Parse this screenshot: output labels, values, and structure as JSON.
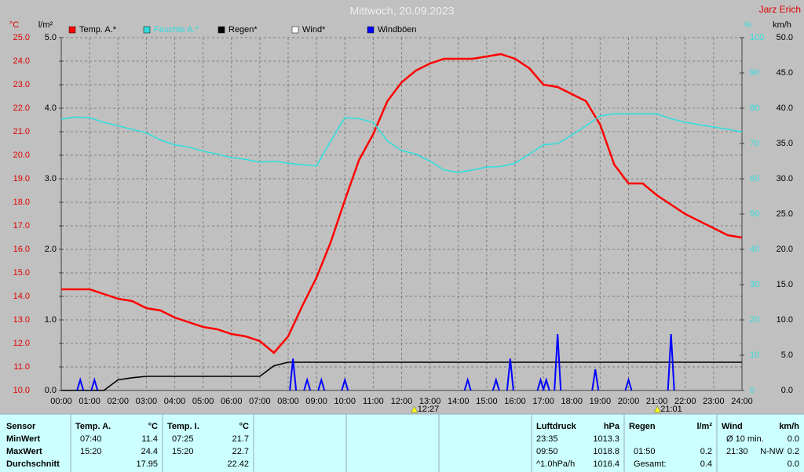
{
  "chart_data": {
    "type": "line",
    "title": "Mittwoch, 20.09.2023",
    "author": "Jarz Erich",
    "units": {
      "y": "°C",
      "y2": "l/m²",
      "y3": "%",
      "y4": "km/h"
    },
    "legend": "top",
    "grid": true,
    "xlim": [
      0,
      24
    ],
    "x": [
      "00:00",
      null,
      "01:00",
      null,
      "02:00",
      null,
      "03:00",
      null,
      "04:00",
      null,
      "05:00",
      null,
      "06:00",
      null,
      "07:00",
      null,
      "08:00",
      null,
      "09:00",
      null,
      "10:00",
      null,
      "11:00",
      null,
      "12:00",
      null,
      "13:00",
      null,
      "14:00",
      null,
      "15:00",
      null,
      "16:00",
      null,
      "17:00",
      null,
      "18:00",
      null,
      "19:00",
      null,
      "20:00",
      null,
      "21:00",
      null,
      "22:00",
      null,
      "23:00",
      null,
      "24:00"
    ],
    "ylim": [
      10,
      25
    ],
    "yticks": [
      {
        "value": 10,
        "label": "10.0"
      },
      {
        "value": 11,
        "label": "11.0"
      },
      {
        "value": 12,
        "label": "12.0"
      },
      {
        "value": 13,
        "label": "13.0"
      },
      {
        "value": 14,
        "label": "14.0"
      },
      {
        "value": 15,
        "label": "15.0"
      },
      {
        "value": 16,
        "label": "16.0"
      },
      {
        "value": 17,
        "label": "17.0"
      },
      {
        "value": 18,
        "label": "18.0"
      },
      {
        "value": 19,
        "label": "19.0"
      },
      {
        "value": 20,
        "label": "20.0"
      },
      {
        "value": 21,
        "label": "21.0"
      },
      {
        "value": 22,
        "label": "22.0"
      },
      {
        "value": 23,
        "label": "23.0"
      },
      {
        "value": 24,
        "label": "24.0"
      },
      {
        "value": 25,
        "label": "25.0"
      }
    ],
    "y2lim": [
      0,
      5
    ],
    "y2ticks": [
      {
        "value": 0,
        "label": "0.0"
      },
      {
        "value": 1,
        "label": "1.0"
      },
      {
        "value": 2,
        "label": "2.0"
      },
      {
        "value": 3,
        "label": "3.0"
      },
      {
        "value": 4,
        "label": "4.0"
      },
      {
        "value": 5,
        "label": "5.0"
      }
    ],
    "y3lim": [
      0,
      100
    ],
    "y3ticks": [
      0,
      10,
      20,
      30,
      40,
      50,
      60,
      70,
      80,
      90,
      100
    ],
    "y4lim": [
      0,
      50
    ],
    "y4ticks": [
      {
        "value": 0,
        "label": "0.0"
      },
      {
        "value": 5,
        "label": "5.0"
      },
      {
        "value": 10,
        "label": "10.0"
      },
      {
        "value": 15,
        "label": "15.0"
      },
      {
        "value": 20,
        "label": "20.0"
      },
      {
        "value": 25,
        "label": "25.0"
      },
      {
        "value": 30,
        "label": "30.0"
      },
      {
        "value": 35,
        "label": "35.0"
      },
      {
        "value": 40,
        "label": "40.0"
      },
      {
        "value": 45,
        "label": "45.0"
      },
      {
        "value": 50,
        "label": "50.0"
      }
    ],
    "series": [
      {
        "name": "Temp. A.*",
        "color": "#ff0000",
        "axis": "y",
        "values": [
          14.3,
          14.3,
          14.3,
          14.1,
          13.9,
          13.8,
          13.5,
          13.4,
          13.1,
          12.9,
          12.7,
          12.6,
          12.4,
          12.3,
          12.1,
          11.6,
          12.3,
          13.6,
          14.8,
          16.3,
          18.1,
          19.8,
          20.9,
          22.3,
          23.1,
          23.6,
          23.9,
          24.1,
          24.1,
          24.1,
          24.2,
          24.3,
          24.1,
          23.7,
          23.0,
          22.9,
          22.6,
          22.3,
          21.3,
          19.6,
          18.8,
          18.8,
          18.3,
          17.9,
          17.5,
          17.2,
          16.9,
          16.6,
          16.5
        ]
      },
      {
        "name": "Feuchte A.*",
        "color": "#33dddd",
        "axis": "y3",
        "values": [
          76.9,
          77.5,
          77.3,
          76,
          75,
          74,
          73,
          71,
          69.6,
          69,
          67.8,
          67,
          66,
          65.5,
          64.7,
          65,
          64.4,
          64,
          63.6,
          70.7,
          77.3,
          77,
          76,
          70.7,
          68,
          67,
          65,
          62.5,
          61.8,
          62.5,
          63.3,
          63.5,
          64.4,
          67,
          69.6,
          70,
          72.4,
          75,
          77.8,
          78.4,
          78.4,
          78.4,
          78.4,
          77,
          76,
          75.3,
          74.7,
          74,
          73.3
        ]
      },
      {
        "name": "Regen*",
        "color": "#000000",
        "axis": "y2",
        "values": [
          0,
          0,
          0,
          0,
          0.15,
          0.18,
          0.2,
          0.2,
          0.2,
          0.2,
          0.2,
          0.2,
          0.2,
          0.2,
          0.2,
          0.35,
          0.4,
          0.4,
          0.4,
          0.4,
          0.4,
          0.4,
          0.4,
          0.4,
          0.4,
          0.4,
          0.4,
          0.4,
          0.4,
          0.4,
          0.4,
          0.4,
          0.4,
          0.4,
          0.4,
          0.4,
          0.4,
          0.4,
          0.4,
          0.4,
          0.4,
          0.4,
          0.4,
          0.4,
          0.4,
          0.4,
          0.4,
          0.4,
          0.4
        ]
      },
      {
        "name": "Wind*",
        "color": "#ffffff",
        "axis": "y4"
      },
      {
        "name": "Windböen",
        "color": "#0000ff",
        "axis": "y4",
        "x": [
          0.67,
          1.17,
          8.17,
          8.67,
          9.17,
          10.0,
          14.33,
          15.33,
          15.83,
          16.9,
          17.1,
          17.5,
          18.83,
          20.0,
          21.5
        ],
        "values": [
          1.5,
          1.5,
          4.5,
          1.5,
          1.5,
          1.5,
          1.5,
          1.5,
          4.5,
          1.5,
          1.5,
          8.0,
          3.0,
          1.5,
          8.0
        ]
      }
    ],
    "annotations": [
      "12:27",
      "21:01"
    ]
  },
  "table": {
    "sensor": {
      "header": "Sensor",
      "rows": [
        "MinWert",
        "MaxWert",
        "Durchschnitt"
      ]
    },
    "columns": [
      {
        "header": "Temp. A.",
        "unit": "°C",
        "rows": [
          [
            "07:40",
            "11.4"
          ],
          [
            "15:20",
            "24.4"
          ],
          [
            null,
            "17.95"
          ]
        ]
      },
      {
        "header": "Temp. I.",
        "unit": "°C",
        "rows": [
          [
            "07:25",
            "21.7"
          ],
          [
            "15:20",
            "22.7"
          ],
          [
            null,
            "22.42"
          ]
        ]
      },
      {
        "header": "Luftdruck",
        "unit": "hPa",
        "rows": [
          [
            "23:35",
            "1013.3"
          ],
          [
            "09:50",
            "1018.8"
          ],
          [
            "^1.0hPa/h",
            "1016.4"
          ]
        ]
      },
      {
        "header": "Regen",
        "unit": "l/m²",
        "rows": [
          [
            null,
            null
          ],
          [
            "01:50",
            "0.2"
          ],
          [
            "Gesamt:",
            "0.4"
          ]
        ]
      },
      {
        "header": "Wind",
        "unit": "km/h",
        "rows": [
          [
            "Ø 10 min.",
            "0.0"
          ],
          [
            "21:30",
            "N-NW",
            "0.2"
          ],
          [
            null,
            "0.0"
          ]
        ]
      }
    ]
  }
}
